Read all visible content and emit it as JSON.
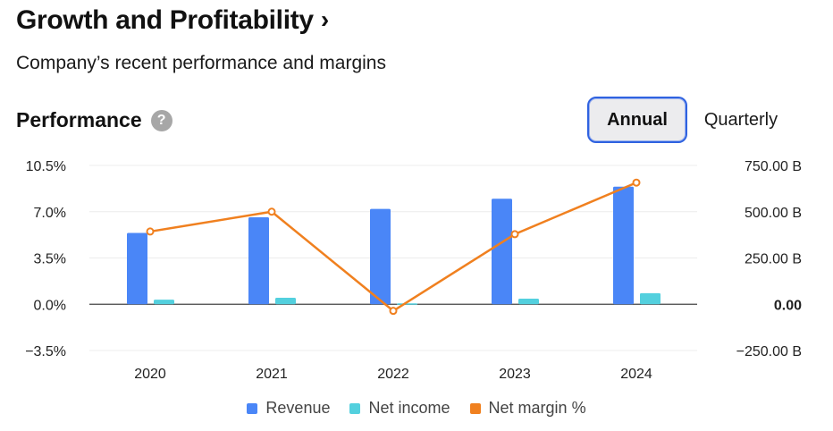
{
  "header": {
    "title": "Growth and Profitability",
    "chevron": "›",
    "subtitle": "Company’s recent performance and margins"
  },
  "section": {
    "title": "Performance",
    "help_glyph": "?"
  },
  "toggle": {
    "annual_label": "Annual",
    "quarterly_label": "Quarterly",
    "selected": "Annual"
  },
  "colors": {
    "revenue": "#4a86f7",
    "net_income": "#53d0de",
    "net_margin": "#f0801f",
    "grid": "#ececec",
    "zero_line": "#444444"
  },
  "chart_data": {
    "type": "bar",
    "categories": [
      "2020",
      "2021",
      "2022",
      "2023",
      "2024"
    ],
    "series": [
      {
        "name": "Revenue",
        "axis": "right",
        "kind": "bar",
        "values": [
          385,
          470,
          515,
          570,
          635
        ]
      },
      {
        "name": "Net income",
        "axis": "right",
        "kind": "bar",
        "values": [
          25,
          35,
          5,
          30,
          60
        ]
      },
      {
        "name": "Net margin %",
        "axis": "left",
        "kind": "line",
        "values": [
          5.5,
          7.0,
          -0.5,
          5.3,
          9.2
        ]
      }
    ],
    "left_axis": {
      "ticks": [
        "10.5%",
        "7.0%",
        "3.5%",
        "0.0%",
        "−3.5%"
      ],
      "range": [
        -3.5,
        10.5
      ]
    },
    "right_axis": {
      "ticks": [
        "750.00 B",
        "500.00 B",
        "250.00 B",
        "0.00",
        "−250.00 B"
      ],
      "range": [
        -250,
        750
      ]
    },
    "legend": [
      "Revenue",
      "Net income",
      "Net margin %"
    ]
  }
}
